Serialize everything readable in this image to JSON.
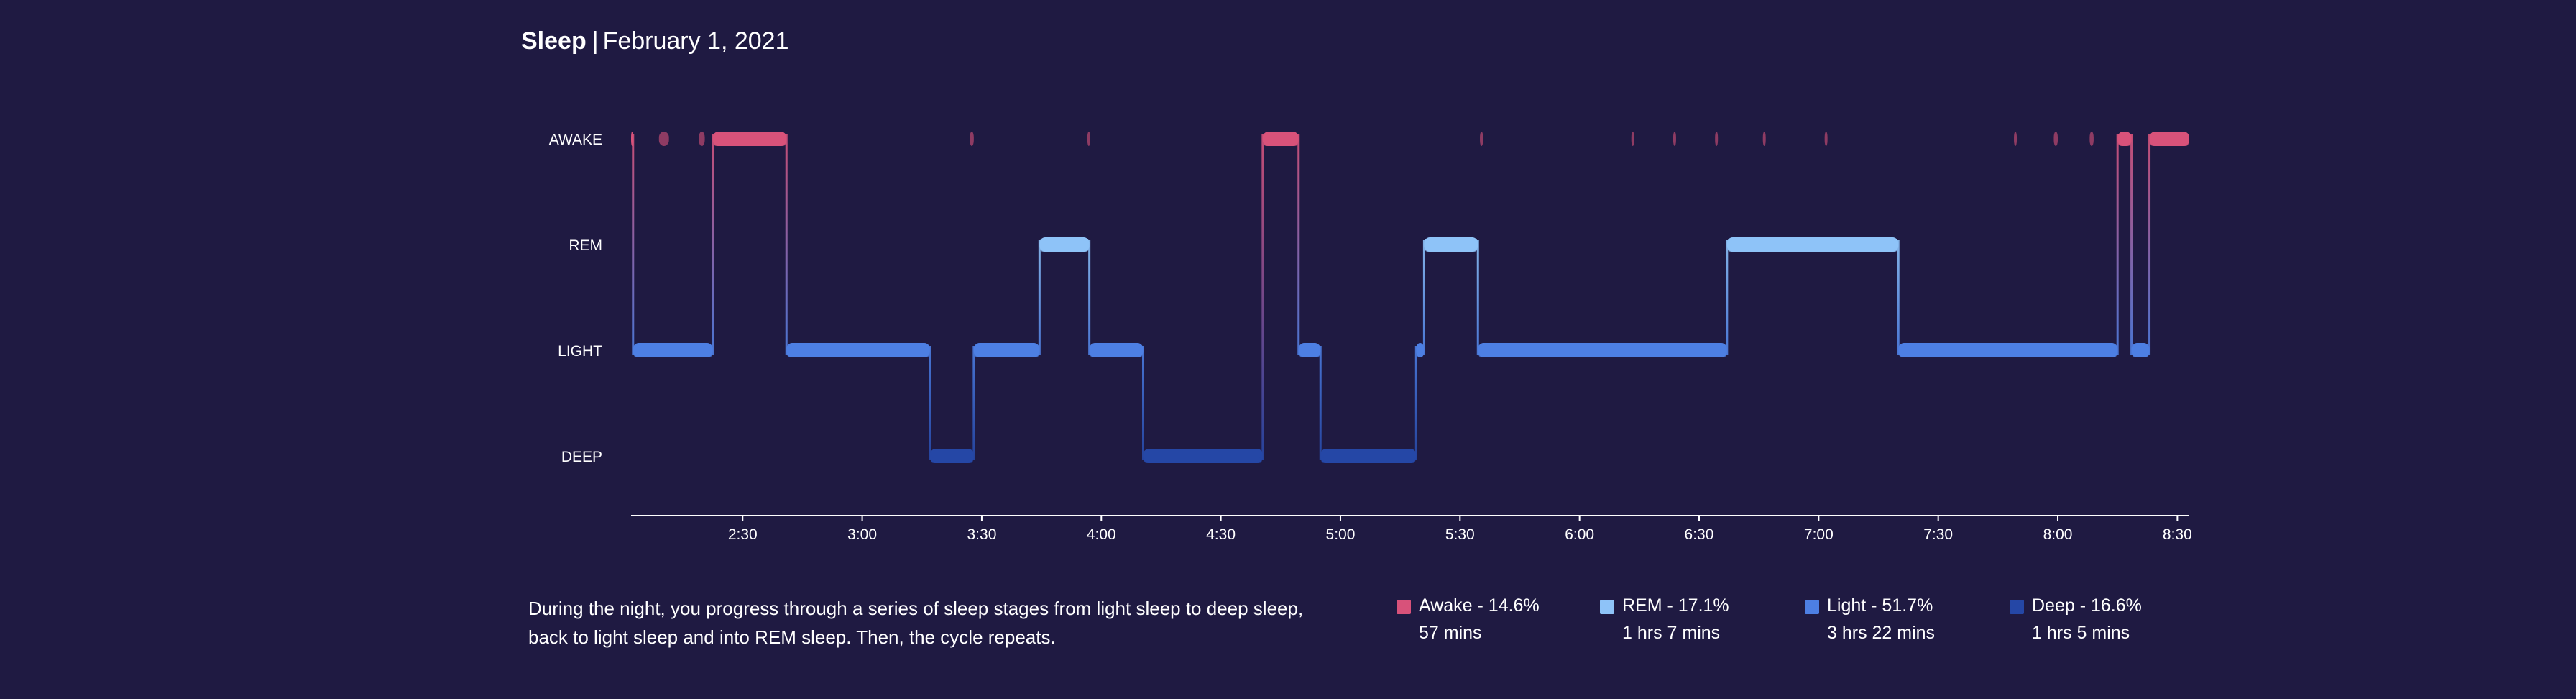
{
  "header": {
    "title": "Sleep",
    "separator": "|",
    "date": "February 1, 2021"
  },
  "description": "During the night, you progress through a series of sleep stages from light sleep to deep sleep, back to light sleep and into REM sleep. Then, the cycle repeats.",
  "colors": {
    "background": "#1f1a42",
    "awake": "#d8527a",
    "rem": "#8ec3f8",
    "light": "#4d7fe3",
    "deep": "#2547a6"
  },
  "legend": [
    {
      "key": "awake",
      "label": "Awake - 14.6%",
      "duration": "57 mins",
      "color": "#d8527a"
    },
    {
      "key": "rem",
      "label": "REM - 17.1%",
      "duration": "1 hrs 7 mins",
      "color": "#8ec3f8"
    },
    {
      "key": "light",
      "label": "Light - 51.7%",
      "duration": "3 hrs 22 mins",
      "color": "#4d7fe3"
    },
    {
      "key": "deep",
      "label": "Deep - 16.6%",
      "duration": "1 hrs 5 mins",
      "color": "#2547a6"
    }
  ],
  "chart_data": {
    "type": "area",
    "title": "Sleep | February 1, 2021",
    "stages": [
      "AWAKE",
      "REM",
      "LIGHT",
      "DEEP"
    ],
    "x_ticks": [
      "2:30",
      "3:00",
      "3:30",
      "4:00",
      "4:30",
      "5:00",
      "5:30",
      "6:00",
      "6:30",
      "7:00",
      "7:30",
      "8:00",
      "8:30"
    ],
    "x_range_minutes": [
      122,
      513
    ],
    "segments": [
      {
        "stage": "AWAKE",
        "start": 122,
        "end": 122.5
      },
      {
        "stage": "LIGHT",
        "start": 122.5,
        "end": 142.5
      },
      {
        "stage": "AWAKE",
        "start": 142.5,
        "end": 161
      },
      {
        "stage": "LIGHT",
        "start": 161,
        "end": 197
      },
      {
        "stage": "DEEP",
        "start": 197,
        "end": 208
      },
      {
        "stage": "LIGHT",
        "start": 208,
        "end": 224.5
      },
      {
        "stage": "REM",
        "start": 224.5,
        "end": 237
      },
      {
        "stage": "LIGHT",
        "start": 237,
        "end": 250.5
      },
      {
        "stage": "DEEP",
        "start": 250.5,
        "end": 280.5
      },
      {
        "stage": "AWAKE",
        "start": 280.5,
        "end": 289.5
      },
      {
        "stage": "LIGHT",
        "start": 289.5,
        "end": 295
      },
      {
        "stage": "DEEP",
        "start": 295,
        "end": 319
      },
      {
        "stage": "LIGHT",
        "start": 319,
        "end": 321
      },
      {
        "stage": "REM",
        "start": 321,
        "end": 334.5
      },
      {
        "stage": "LIGHT",
        "start": 334.5,
        "end": 397
      },
      {
        "stage": "REM",
        "start": 397,
        "end": 440
      },
      {
        "stage": "LIGHT",
        "start": 440,
        "end": 495
      },
      {
        "stage": "AWAKE",
        "start": 495,
        "end": 498.5
      },
      {
        "stage": "LIGHT",
        "start": 498.5,
        "end": 503
      },
      {
        "stage": "AWAKE",
        "start": 503,
        "end": 513
      }
    ],
    "awake_blips": [
      {
        "t": 129,
        "dur": 2.5
      },
      {
        "t": 139,
        "dur": 1.5
      },
      {
        "t": 207,
        "dur": 1
      },
      {
        "t": 236.5,
        "dur": 0.5
      },
      {
        "t": 335,
        "dur": 0.8
      },
      {
        "t": 373,
        "dur": 0.6
      },
      {
        "t": 383.5,
        "dur": 0.5
      },
      {
        "t": 394,
        "dur": 0.5
      },
      {
        "t": 406,
        "dur": 0.5
      },
      {
        "t": 421.5,
        "dur": 0.6
      },
      {
        "t": 469,
        "dur": 0.6
      },
      {
        "t": 479,
        "dur": 1
      },
      {
        "t": 488,
        "dur": 1
      }
    ],
    "grid": false
  }
}
